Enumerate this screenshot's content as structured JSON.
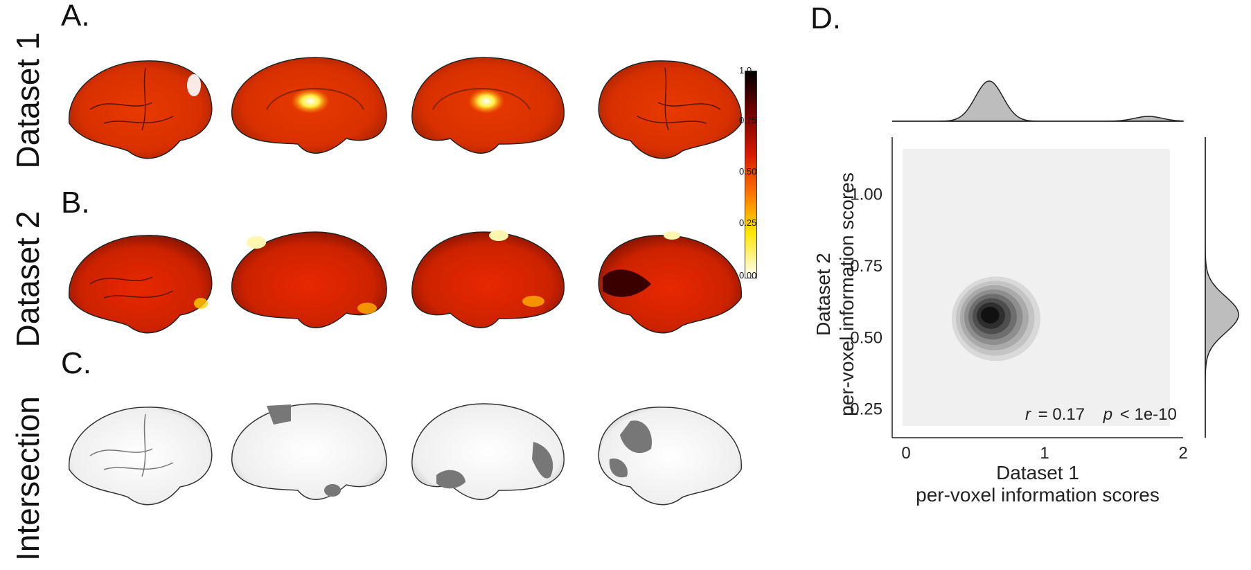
{
  "panels": {
    "a": "A.",
    "b": "B.",
    "c": "C.",
    "d": "D."
  },
  "rows": {
    "dataset1": "Dataset 1",
    "dataset2": "Dataset 2",
    "intersection": "Intersection"
  },
  "colorbar": {
    "ticks": [
      "1.0",
      "0.75",
      "0.50",
      "0.25",
      "0.00"
    ],
    "colors": [
      "#000000",
      "#6a0000",
      "#d61a00",
      "#ff7a00",
      "#ffe600",
      "#ffffff"
    ]
  },
  "brain_views": [
    "left-lateral",
    "left-medial",
    "right-medial",
    "right-lateral"
  ],
  "chart_data": {
    "type": "scatter",
    "subtype": "kde-joint-plot",
    "xlabel_line1": "Dataset 1",
    "xlabel_line2": "per-voxel information scores",
    "ylabel_line1": "Dataset 2",
    "ylabel_line2": "per-voxel information scores",
    "xlim": [
      -0.1,
      2.0
    ],
    "ylim": [
      0.15,
      1.2
    ],
    "x_ticks": [
      0,
      1,
      2
    ],
    "y_ticks": [
      "1.00",
      "0.75",
      "0.50",
      "0.25"
    ],
    "y_tick_values": [
      1.0,
      0.75,
      0.5,
      0.25
    ],
    "density_peak": {
      "x": 0.6,
      "y": 0.58
    },
    "annotation_r_symbol": "r",
    "annotation_r_value": "= 0.17",
    "annotation_p_symbol": "p",
    "annotation_p_value": "< 1e-10",
    "grid": false,
    "background": "#f0f0f0",
    "marginal_x_peaks": [
      {
        "x": 0.6,
        "h": 1.0
      },
      {
        "x": 1.75,
        "h": 0.12
      }
    ],
    "marginal_y_peak": 0.58
  }
}
